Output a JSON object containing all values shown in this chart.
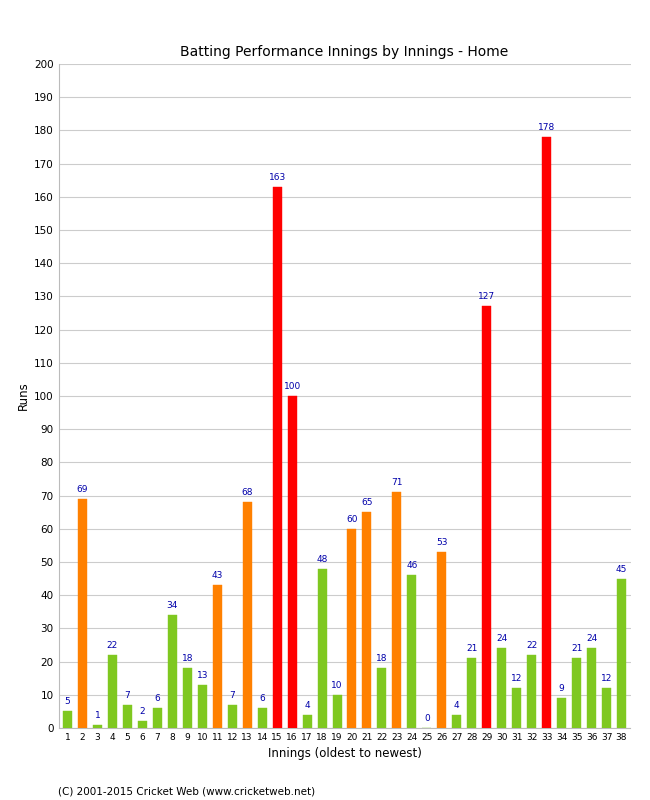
{
  "innings": [
    1,
    2,
    3,
    4,
    5,
    6,
    7,
    8,
    9,
    10,
    11,
    12,
    13,
    14,
    15,
    16,
    17,
    18,
    19,
    20,
    21,
    22,
    23,
    24,
    25,
    26,
    27,
    28,
    29,
    30,
    31,
    32,
    33,
    34,
    35,
    36,
    37,
    38
  ],
  "values": [
    5,
    69,
    1,
    22,
    7,
    2,
    6,
    34,
    18,
    13,
    43,
    7,
    68,
    6,
    163,
    100,
    4,
    48,
    10,
    60,
    65,
    18,
    71,
    46,
    0,
    53,
    4,
    21,
    127,
    24,
    12,
    22,
    178,
    9,
    21,
    24,
    12,
    45
  ],
  "colors": [
    "#7fc820",
    "#ff8000",
    "#7fc820",
    "#7fc820",
    "#7fc820",
    "#7fc820",
    "#7fc820",
    "#7fc820",
    "#7fc820",
    "#7fc820",
    "#ff8000",
    "#7fc820",
    "#ff8000",
    "#7fc820",
    "#ff0000",
    "#ff0000",
    "#7fc820",
    "#7fc820",
    "#7fc820",
    "#ff8000",
    "#ff8000",
    "#7fc820",
    "#ff8000",
    "#7fc820",
    "#7fc820",
    "#ff8000",
    "#7fc820",
    "#7fc820",
    "#ff0000",
    "#7fc820",
    "#7fc820",
    "#7fc820",
    "#ff0000",
    "#7fc820",
    "#7fc820",
    "#7fc820",
    "#7fc820",
    "#7fc820"
  ],
  "title": "Batting Performance Innings by Innings - Home",
  "xlabel": "Innings (oldest to newest)",
  "ylabel": "Runs",
  "ylim": [
    0,
    200
  ],
  "yticks": [
    0,
    10,
    20,
    30,
    40,
    50,
    60,
    70,
    80,
    90,
    100,
    110,
    120,
    130,
    140,
    150,
    160,
    170,
    180,
    190,
    200
  ],
  "label_color": "#0000aa",
  "label_fontsize": 6.5,
  "footer": "(C) 2001-2015 Cricket Web (www.cricketweb.net)",
  "background_color": "#ffffff",
  "grid_color": "#cccccc",
  "fig_width": 6.5,
  "fig_height": 8.0,
  "fig_dpi": 100
}
